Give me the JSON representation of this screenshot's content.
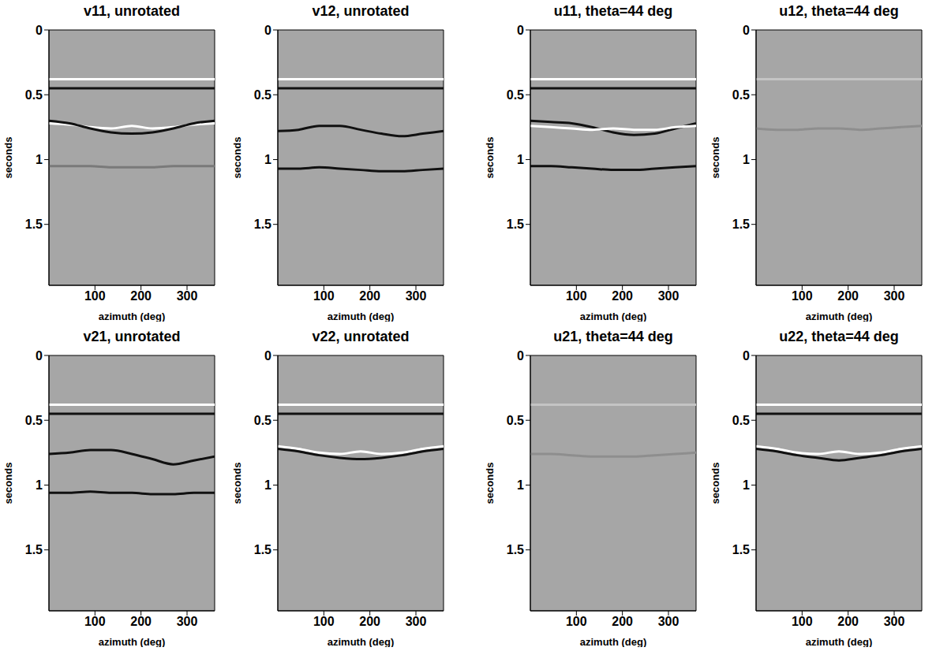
{
  "chart_data": [
    {
      "type": "line",
      "title": "v11, unrotated",
      "x_label": "azimuth (deg)",
      "y_label": "seconds",
      "x": [
        0,
        45,
        90,
        135,
        180,
        225,
        270,
        315,
        360
      ],
      "xlim": [
        0,
        360
      ],
      "ylim": [
        0,
        1.97
      ],
      "xticks": [
        100,
        200,
        300
      ],
      "yticks": [
        0,
        0.5,
        1,
        1.5
      ],
      "color": "#a6a6a6",
      "series": [
        {
          "color": "#ffffff",
          "values": [
            0.38,
            0.38,
            0.38,
            0.38,
            0.38,
            0.38,
            0.38,
            0.38,
            0.38
          ]
        },
        {
          "color": "#111111",
          "values": [
            0.45,
            0.45,
            0.45,
            0.45,
            0.45,
            0.45,
            0.45,
            0.45,
            0.45
          ]
        },
        {
          "color": "#ffffff",
          "values": [
            0.72,
            0.73,
            0.75,
            0.76,
            0.74,
            0.76,
            0.75,
            0.73,
            0.72
          ]
        },
        {
          "color": "#111111",
          "values": [
            0.7,
            0.72,
            0.76,
            0.79,
            0.8,
            0.79,
            0.76,
            0.72,
            0.7
          ]
        },
        {
          "color": "#7a7a7a",
          "values": [
            1.05,
            1.05,
            1.05,
            1.06,
            1.06,
            1.06,
            1.05,
            1.05,
            1.05
          ]
        }
      ]
    },
    {
      "type": "line",
      "title": "v12, unrotated",
      "x_label": "azimuth (deg)",
      "y_label": "seconds",
      "x": [
        0,
        45,
        90,
        135,
        180,
        225,
        270,
        315,
        360
      ],
      "xlim": [
        0,
        360
      ],
      "ylim": [
        0,
        1.97
      ],
      "xticks": [
        100,
        200,
        300
      ],
      "yticks": [
        0,
        0.5,
        1,
        1.5
      ],
      "color": "#a6a6a6",
      "series": [
        {
          "color": "#ffffff",
          "values": [
            0.38,
            0.38,
            0.38,
            0.38,
            0.38,
            0.38,
            0.38,
            0.38,
            0.38
          ]
        },
        {
          "color": "#111111",
          "values": [
            0.45,
            0.45,
            0.45,
            0.45,
            0.45,
            0.45,
            0.45,
            0.45,
            0.45
          ]
        },
        {
          "color": "#111111",
          "values": [
            0.78,
            0.77,
            0.74,
            0.74,
            0.77,
            0.8,
            0.82,
            0.8,
            0.78
          ]
        },
        {
          "color": "#111111",
          "values": [
            1.07,
            1.07,
            1.06,
            1.07,
            1.08,
            1.09,
            1.09,
            1.08,
            1.07
          ]
        }
      ]
    },
    {
      "type": "line",
      "title": "u11, theta=44 deg",
      "x_label": "azimuth (deg)",
      "y_label": "seconds",
      "x": [
        0,
        45,
        90,
        135,
        180,
        225,
        270,
        315,
        360
      ],
      "xlim": [
        0,
        360
      ],
      "ylim": [
        0,
        1.97
      ],
      "xticks": [
        100,
        200,
        300
      ],
      "yticks": [
        0,
        0.5,
        1,
        1.5
      ],
      "color": "#a6a6a6",
      "series": [
        {
          "color": "#ffffff",
          "values": [
            0.38,
            0.38,
            0.38,
            0.38,
            0.38,
            0.38,
            0.38,
            0.38,
            0.38
          ]
        },
        {
          "color": "#111111",
          "values": [
            0.45,
            0.45,
            0.45,
            0.45,
            0.45,
            0.45,
            0.45,
            0.45,
            0.45
          ]
        },
        {
          "color": "#111111",
          "values": [
            0.7,
            0.71,
            0.72,
            0.75,
            0.79,
            0.81,
            0.8,
            0.76,
            0.72
          ]
        },
        {
          "color": "#ffffff",
          "values": [
            0.74,
            0.75,
            0.76,
            0.77,
            0.76,
            0.77,
            0.77,
            0.75,
            0.74
          ]
        },
        {
          "color": "#111111",
          "values": [
            1.05,
            1.05,
            1.06,
            1.07,
            1.08,
            1.08,
            1.07,
            1.06,
            1.05
          ]
        }
      ]
    },
    {
      "type": "line",
      "title": "u12, theta=44 deg",
      "x_label": "azimuth (deg)",
      "y_label": "seconds",
      "x": [
        0,
        45,
        90,
        135,
        180,
        225,
        270,
        315,
        360
      ],
      "xlim": [
        0,
        360
      ],
      "ylim": [
        0,
        1.97
      ],
      "xticks": [
        100,
        200,
        300
      ],
      "yticks": [
        0,
        0.5,
        1,
        1.5
      ],
      "color": "#a6a6a6",
      "series": [
        {
          "color": "#c4c4c4",
          "values": [
            0.38,
            0.38,
            0.38,
            0.38,
            0.38,
            0.38,
            0.38,
            0.38,
            0.38
          ]
        },
        {
          "color": "#8e8e8e",
          "values": [
            0.76,
            0.77,
            0.77,
            0.76,
            0.76,
            0.77,
            0.76,
            0.75,
            0.74
          ]
        }
      ]
    },
    {
      "type": "line",
      "title": "v21, unrotated",
      "x_label": "azimuth (deg)",
      "y_label": "seconds",
      "x": [
        0,
        45,
        90,
        135,
        180,
        225,
        270,
        315,
        360
      ],
      "xlim": [
        0,
        360
      ],
      "ylim": [
        0,
        1.97
      ],
      "xticks": [
        100,
        200,
        300
      ],
      "yticks": [
        0,
        0.5,
        1,
        1.5
      ],
      "color": "#a6a6a6",
      "series": [
        {
          "color": "#ffffff",
          "values": [
            0.38,
            0.38,
            0.38,
            0.38,
            0.38,
            0.38,
            0.38,
            0.38,
            0.38
          ]
        },
        {
          "color": "#111111",
          "values": [
            0.45,
            0.45,
            0.45,
            0.45,
            0.45,
            0.45,
            0.45,
            0.45,
            0.45
          ]
        },
        {
          "color": "#111111",
          "values": [
            0.76,
            0.75,
            0.73,
            0.73,
            0.76,
            0.8,
            0.84,
            0.81,
            0.78
          ]
        },
        {
          "color": "#111111",
          "values": [
            1.06,
            1.06,
            1.05,
            1.06,
            1.06,
            1.07,
            1.07,
            1.06,
            1.06
          ]
        }
      ]
    },
    {
      "type": "line",
      "title": "v22, unrotated",
      "x_label": "azimuth (deg)",
      "y_label": "seconds",
      "x": [
        0,
        45,
        90,
        135,
        180,
        225,
        270,
        315,
        360
      ],
      "xlim": [
        0,
        360
      ],
      "ylim": [
        0,
        1.97
      ],
      "xticks": [
        100,
        200,
        300
      ],
      "yticks": [
        0,
        0.5,
        1,
        1.5
      ],
      "color": "#a6a6a6",
      "series": [
        {
          "color": "#ffffff",
          "values": [
            0.38,
            0.38,
            0.38,
            0.38,
            0.38,
            0.38,
            0.38,
            0.38,
            0.38
          ]
        },
        {
          "color": "#111111",
          "values": [
            0.45,
            0.45,
            0.45,
            0.45,
            0.45,
            0.45,
            0.45,
            0.45,
            0.45
          ]
        },
        {
          "color": "#ffffff",
          "values": [
            0.7,
            0.72,
            0.75,
            0.76,
            0.74,
            0.76,
            0.75,
            0.72,
            0.7
          ]
        },
        {
          "color": "#111111",
          "values": [
            0.72,
            0.74,
            0.77,
            0.79,
            0.8,
            0.79,
            0.77,
            0.74,
            0.72
          ]
        }
      ]
    },
    {
      "type": "line",
      "title": "u21, theta=44 deg",
      "x_label": "azimuth (deg)",
      "y_label": "seconds",
      "x": [
        0,
        45,
        90,
        135,
        180,
        225,
        270,
        315,
        360
      ],
      "xlim": [
        0,
        360
      ],
      "ylim": [
        0,
        1.97
      ],
      "xticks": [
        100,
        200,
        300
      ],
      "yticks": [
        0,
        0.5,
        1,
        1.5
      ],
      "color": "#a6a6a6",
      "series": [
        {
          "color": "#c4c4c4",
          "values": [
            0.38,
            0.38,
            0.38,
            0.38,
            0.38,
            0.38,
            0.38,
            0.38,
            0.38
          ]
        },
        {
          "color": "#8e8e8e",
          "values": [
            0.76,
            0.76,
            0.77,
            0.78,
            0.78,
            0.78,
            0.77,
            0.76,
            0.75
          ]
        }
      ]
    },
    {
      "type": "line",
      "title": "u22, theta=44 deg",
      "x_label": "azimuth (deg)",
      "y_label": "seconds",
      "x": [
        0,
        45,
        90,
        135,
        180,
        225,
        270,
        315,
        360
      ],
      "xlim": [
        0,
        360
      ],
      "ylim": [
        0,
        1.97
      ],
      "xticks": [
        100,
        200,
        300
      ],
      "yticks": [
        0,
        0.5,
        1,
        1.5
      ],
      "color": "#a6a6a6",
      "series": [
        {
          "color": "#ffffff",
          "values": [
            0.38,
            0.38,
            0.38,
            0.38,
            0.38,
            0.38,
            0.38,
            0.38,
            0.38
          ]
        },
        {
          "color": "#111111",
          "values": [
            0.45,
            0.45,
            0.45,
            0.45,
            0.45,
            0.45,
            0.45,
            0.45,
            0.45
          ]
        },
        {
          "color": "#ffffff",
          "values": [
            0.7,
            0.72,
            0.75,
            0.76,
            0.74,
            0.76,
            0.75,
            0.72,
            0.7
          ]
        },
        {
          "color": "#111111",
          "values": [
            0.72,
            0.74,
            0.77,
            0.79,
            0.81,
            0.79,
            0.77,
            0.74,
            0.72
          ]
        }
      ]
    }
  ]
}
